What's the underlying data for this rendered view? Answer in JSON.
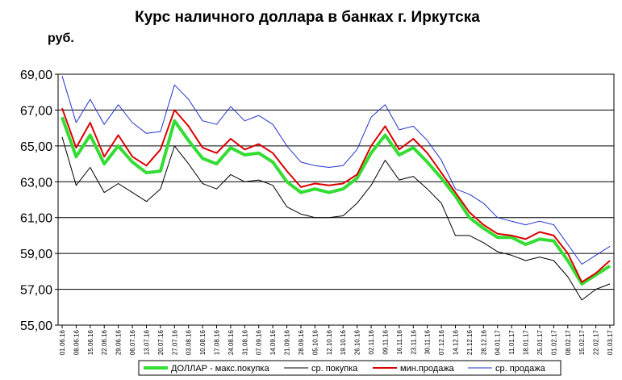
{
  "chart_data": {
    "type": "line",
    "title": "Курс наличного доллара в банках г. Иркутска",
    "ylabel": "руб.",
    "ylim": [
      55,
      69
    ],
    "yticks": [
      "55,00",
      "57,00",
      "59,00",
      "61,00",
      "63,00",
      "65,00",
      "67,00",
      "69,00"
    ],
    "ytick_values": [
      55,
      57,
      59,
      61,
      63,
      65,
      67,
      69
    ],
    "grid": true,
    "legend": "bottom",
    "x": [
      "01.06.16",
      "08.06.16",
      "15.06.16",
      "22.06.16",
      "29.06.16",
      "06.07.16",
      "13.07.16",
      "20.07.16",
      "27.07.16",
      "03.08.16",
      "10.08.16",
      "17.08.16",
      "24.08.16",
      "31.08.16",
      "07.09.16",
      "14.09.16",
      "21.09.16",
      "28.09.16",
      "05.10.16",
      "12.10.16",
      "19.10.16",
      "26.10.16",
      "02.11.16",
      "09.11.16",
      "16.11.16",
      "23.11.16",
      "30.11.16",
      "07.12.16",
      "14.12.16",
      "21.12.16",
      "28.12.16",
      "04.01.17",
      "11.01.17",
      "18.01.17",
      "25.01.17",
      "01.02.17",
      "08.02.17",
      "15.02.17",
      "22.02.17",
      "01.03.17"
    ],
    "series": [
      {
        "name": "ДОЛЛАР - макс.покупка",
        "color": "#33dd33",
        "values": [
          66.6,
          64.4,
          65.6,
          64.0,
          65.0,
          64.1,
          63.5,
          63.6,
          66.4,
          65.3,
          64.3,
          64.0,
          64.9,
          64.5,
          64.6,
          64.1,
          63.0,
          62.4,
          62.6,
          62.4,
          62.6,
          63.2,
          64.6,
          65.6,
          64.5,
          64.9,
          64.1,
          63.2,
          62.2,
          61.0,
          60.4,
          59.9,
          59.9,
          59.5,
          59.8,
          59.7,
          58.6,
          57.3,
          57.8,
          58.3
        ]
      },
      {
        "name": "ср. покупка",
        "color": "#000000",
        "values": [
          65.5,
          62.8,
          63.8,
          62.4,
          62.9,
          62.4,
          61.9,
          62.6,
          65.0,
          64.0,
          62.9,
          62.6,
          63.4,
          63.0,
          63.1,
          62.8,
          61.6,
          61.2,
          61.0,
          61.0,
          61.1,
          61.8,
          62.8,
          64.2,
          63.1,
          63.3,
          62.6,
          61.8,
          60.0,
          60.0,
          59.6,
          59.1,
          58.9,
          58.6,
          58.8,
          58.6,
          57.7,
          56.4,
          57.0,
          57.3
        ]
      },
      {
        "name": "мин.продажа",
        "color": "#dd0000",
        "values": [
          67.1,
          64.9,
          66.3,
          64.4,
          65.6,
          64.4,
          63.9,
          64.8,
          67.0,
          66.1,
          64.9,
          64.6,
          65.4,
          64.8,
          65.1,
          64.6,
          63.6,
          62.7,
          62.9,
          62.8,
          62.9,
          63.4,
          65.0,
          66.1,
          64.8,
          65.4,
          64.6,
          63.5,
          62.4,
          61.3,
          60.6,
          60.1,
          60.0,
          59.8,
          60.2,
          60.0,
          59.0,
          57.4,
          57.9,
          58.6
        ]
      },
      {
        "name": "ср. продажа",
        "color": "#2233cc",
        "values": [
          68.9,
          66.3,
          67.6,
          66.2,
          67.3,
          66.3,
          65.7,
          65.8,
          68.4,
          67.6,
          66.4,
          66.2,
          67.2,
          66.4,
          66.7,
          66.2,
          65.0,
          64.1,
          63.9,
          63.8,
          63.9,
          64.8,
          66.6,
          67.3,
          65.9,
          66.1,
          65.3,
          64.2,
          62.6,
          62.3,
          61.8,
          61.0,
          60.8,
          60.6,
          60.8,
          60.6,
          59.5,
          58.4,
          58.9,
          59.4
        ]
      }
    ]
  }
}
